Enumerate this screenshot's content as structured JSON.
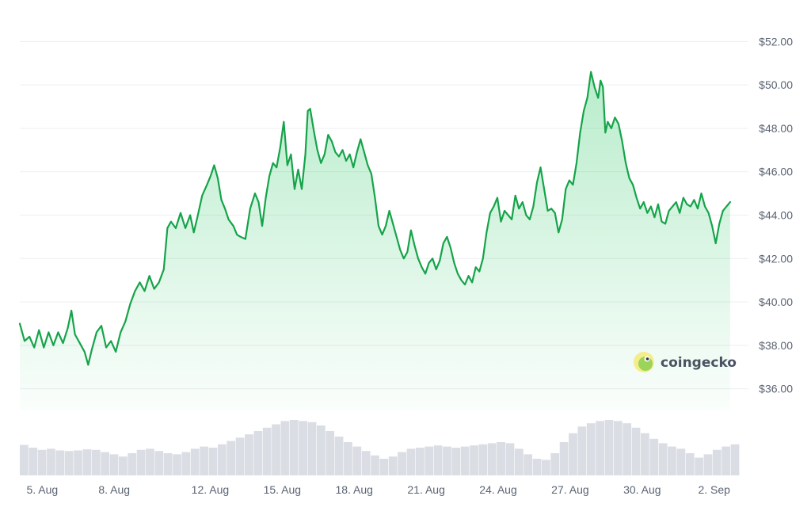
{
  "colors": {
    "line": "#16a34a",
    "area_top": "#22c55e",
    "grid": "#eeeff2",
    "volume": "#dadde3",
    "axis_text": "#5b6373"
  },
  "watermark": {
    "text": "coingecko",
    "icon": "gecko-logo-icon"
  },
  "chart_data": {
    "type": "area",
    "title": "",
    "xlabel": "",
    "ylabel": "",
    "ylim": [
      35,
      53
    ],
    "grid": true,
    "y_ticks": [
      "$36.00",
      "$38.00",
      "$40.00",
      "$42.00",
      "$44.00",
      "$46.00",
      "$48.00",
      "$50.00",
      "$52.00"
    ],
    "y_tick_values": [
      36,
      38,
      40,
      42,
      44,
      46,
      48,
      50,
      52
    ],
    "x_ticks": [
      "5. Aug",
      "8. Aug",
      "12. Aug",
      "15. Aug",
      "18. Aug",
      "21. Aug",
      "24. Aug",
      "27. Aug",
      "30. Aug",
      "2. Sep"
    ],
    "x_tick_values": [
      5.0,
      8.0,
      12.0,
      15.0,
      18.0,
      21.0,
      24.0,
      27.0,
      30.0,
      33.0
    ],
    "x_range": [
      3.9,
      33.9
    ],
    "series": [
      {
        "values": [
          [
            3.9,
            39.0
          ],
          [
            4.1,
            38.2
          ],
          [
            4.3,
            38.4
          ],
          [
            4.5,
            37.9
          ],
          [
            4.7,
            38.7
          ],
          [
            4.9,
            37.9
          ],
          [
            5.1,
            38.6
          ],
          [
            5.3,
            38.0
          ],
          [
            5.5,
            38.6
          ],
          [
            5.7,
            38.1
          ],
          [
            5.9,
            38.8
          ],
          [
            6.05,
            39.6
          ],
          [
            6.2,
            38.5
          ],
          [
            6.4,
            38.1
          ],
          [
            6.6,
            37.7
          ],
          [
            6.75,
            37.1
          ],
          [
            6.9,
            37.8
          ],
          [
            7.1,
            38.6
          ],
          [
            7.3,
            38.9
          ],
          [
            7.5,
            37.9
          ],
          [
            7.7,
            38.2
          ],
          [
            7.9,
            37.7
          ],
          [
            8.1,
            38.6
          ],
          [
            8.3,
            39.1
          ],
          [
            8.5,
            39.9
          ],
          [
            8.7,
            40.5
          ],
          [
            8.9,
            40.9
          ],
          [
            9.1,
            40.5
          ],
          [
            9.3,
            41.2
          ],
          [
            9.5,
            40.6
          ],
          [
            9.7,
            40.9
          ],
          [
            9.9,
            41.5
          ],
          [
            10.05,
            43.4
          ],
          [
            10.2,
            43.7
          ],
          [
            10.4,
            43.4
          ],
          [
            10.6,
            44.1
          ],
          [
            10.8,
            43.4
          ],
          [
            11.0,
            44.0
          ],
          [
            11.15,
            43.2
          ],
          [
            11.3,
            43.9
          ],
          [
            11.5,
            44.9
          ],
          [
            11.7,
            45.4
          ],
          [
            11.85,
            45.8
          ],
          [
            12.0,
            46.3
          ],
          [
            12.15,
            45.7
          ],
          [
            12.3,
            44.7
          ],
          [
            12.45,
            44.3
          ],
          [
            12.6,
            43.8
          ],
          [
            12.8,
            43.5
          ],
          [
            12.95,
            43.1
          ],
          [
            13.1,
            43.0
          ],
          [
            13.3,
            42.9
          ],
          [
            13.5,
            44.3
          ],
          [
            13.7,
            45.0
          ],
          [
            13.85,
            44.6
          ],
          [
            14.0,
            43.5
          ],
          [
            14.15,
            44.8
          ],
          [
            14.3,
            45.8
          ],
          [
            14.45,
            46.4
          ],
          [
            14.6,
            46.2
          ],
          [
            14.75,
            47.1
          ],
          [
            14.9,
            48.3
          ],
          [
            15.05,
            46.3
          ],
          [
            15.2,
            46.8
          ],
          [
            15.35,
            45.2
          ],
          [
            15.5,
            46.1
          ],
          [
            15.65,
            45.2
          ],
          [
            15.8,
            46.8
          ],
          [
            15.9,
            48.8
          ],
          [
            16.0,
            48.9
          ],
          [
            16.15,
            47.9
          ],
          [
            16.3,
            47.0
          ],
          [
            16.45,
            46.4
          ],
          [
            16.6,
            46.8
          ],
          [
            16.75,
            47.7
          ],
          [
            16.9,
            47.4
          ],
          [
            17.05,
            46.9
          ],
          [
            17.2,
            46.7
          ],
          [
            17.35,
            47.0
          ],
          [
            17.5,
            46.5
          ],
          [
            17.65,
            46.8
          ],
          [
            17.8,
            46.2
          ],
          [
            17.95,
            46.9
          ],
          [
            18.1,
            47.5
          ],
          [
            18.25,
            46.9
          ],
          [
            18.4,
            46.3
          ],
          [
            18.55,
            45.9
          ],
          [
            18.7,
            44.8
          ],
          [
            18.85,
            43.5
          ],
          [
            19.0,
            43.1
          ],
          [
            19.15,
            43.5
          ],
          [
            19.3,
            44.2
          ],
          [
            19.45,
            43.6
          ],
          [
            19.6,
            43.0
          ],
          [
            19.75,
            42.4
          ],
          [
            19.9,
            42.0
          ],
          [
            20.05,
            42.3
          ],
          [
            20.2,
            43.3
          ],
          [
            20.35,
            42.6
          ],
          [
            20.5,
            42.0
          ],
          [
            20.65,
            41.6
          ],
          [
            20.8,
            41.3
          ],
          [
            20.95,
            41.8
          ],
          [
            21.1,
            42.0
          ],
          [
            21.25,
            41.5
          ],
          [
            21.4,
            41.9
          ],
          [
            21.55,
            42.7
          ],
          [
            21.7,
            43.0
          ],
          [
            21.85,
            42.5
          ],
          [
            22.0,
            41.8
          ],
          [
            22.15,
            41.3
          ],
          [
            22.3,
            41.0
          ],
          [
            22.45,
            40.8
          ],
          [
            22.6,
            41.2
          ],
          [
            22.75,
            40.9
          ],
          [
            22.9,
            41.6
          ],
          [
            23.05,
            41.4
          ],
          [
            23.2,
            42.0
          ],
          [
            23.35,
            43.2
          ],
          [
            23.5,
            44.1
          ],
          [
            23.65,
            44.4
          ],
          [
            23.8,
            44.8
          ],
          [
            23.95,
            43.7
          ],
          [
            24.1,
            44.2
          ],
          [
            24.25,
            44.0
          ],
          [
            24.4,
            43.8
          ],
          [
            24.55,
            44.9
          ],
          [
            24.7,
            44.3
          ],
          [
            24.85,
            44.6
          ],
          [
            25.0,
            44.0
          ],
          [
            25.15,
            43.8
          ],
          [
            25.3,
            44.4
          ],
          [
            25.45,
            45.5
          ],
          [
            25.6,
            46.2
          ],
          [
            25.75,
            45.2
          ],
          [
            25.9,
            44.2
          ],
          [
            26.05,
            44.3
          ],
          [
            26.2,
            44.1
          ],
          [
            26.35,
            43.2
          ],
          [
            26.5,
            43.8
          ],
          [
            26.65,
            45.2
          ],
          [
            26.8,
            45.6
          ],
          [
            26.95,
            45.4
          ],
          [
            27.1,
            46.4
          ],
          [
            27.25,
            47.8
          ],
          [
            27.4,
            48.8
          ],
          [
            27.55,
            49.4
          ],
          [
            27.7,
            50.6
          ],
          [
            27.85,
            49.9
          ],
          [
            28.0,
            49.4
          ],
          [
            28.1,
            50.2
          ],
          [
            28.2,
            49.9
          ],
          [
            28.3,
            47.8
          ],
          [
            28.4,
            48.3
          ],
          [
            28.55,
            48.0
          ],
          [
            28.7,
            48.5
          ],
          [
            28.85,
            48.2
          ],
          [
            29.0,
            47.4
          ],
          [
            29.15,
            46.4
          ],
          [
            29.3,
            45.7
          ],
          [
            29.45,
            45.4
          ],
          [
            29.6,
            44.8
          ],
          [
            29.75,
            44.3
          ],
          [
            29.9,
            44.6
          ],
          [
            30.05,
            44.1
          ],
          [
            30.2,
            44.4
          ],
          [
            30.35,
            43.9
          ],
          [
            30.5,
            44.5
          ],
          [
            30.65,
            43.7
          ],
          [
            30.8,
            43.6
          ],
          [
            30.95,
            44.2
          ],
          [
            31.1,
            44.4
          ],
          [
            31.25,
            44.6
          ],
          [
            31.4,
            44.1
          ],
          [
            31.55,
            44.8
          ],
          [
            31.7,
            44.5
          ],
          [
            31.85,
            44.4
          ],
          [
            32.0,
            44.7
          ],
          [
            32.15,
            44.3
          ],
          [
            32.3,
            45.0
          ],
          [
            32.45,
            44.4
          ],
          [
            32.6,
            44.1
          ],
          [
            32.75,
            43.5
          ],
          [
            32.9,
            42.7
          ],
          [
            33.05,
            43.6
          ],
          [
            33.2,
            44.2
          ],
          [
            33.35,
            44.4
          ],
          [
            33.5,
            44.6
          ]
        ]
      }
    ],
    "volume_relative": [
      0.55,
      0.5,
      0.46,
      0.48,
      0.45,
      0.44,
      0.45,
      0.47,
      0.46,
      0.42,
      0.38,
      0.34,
      0.4,
      0.46,
      0.48,
      0.44,
      0.4,
      0.38,
      0.42,
      0.48,
      0.52,
      0.5,
      0.56,
      0.62,
      0.68,
      0.74,
      0.8,
      0.86,
      0.92,
      0.98,
      1.0,
      0.98,
      0.96,
      0.9,
      0.8,
      0.7,
      0.6,
      0.52,
      0.44,
      0.36,
      0.3,
      0.34,
      0.42,
      0.48,
      0.5,
      0.52,
      0.54,
      0.52,
      0.5,
      0.52,
      0.54,
      0.56,
      0.58,
      0.6,
      0.58,
      0.48,
      0.38,
      0.3,
      0.28,
      0.4,
      0.6,
      0.76,
      0.88,
      0.94,
      0.98,
      1.0,
      0.98,
      0.94,
      0.86,
      0.76,
      0.66,
      0.58,
      0.52,
      0.48,
      0.4,
      0.32,
      0.38,
      0.46,
      0.52,
      0.56
    ]
  }
}
